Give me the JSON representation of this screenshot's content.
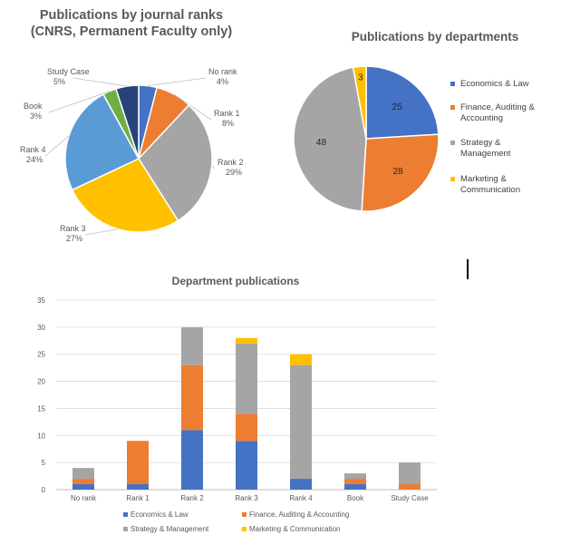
{
  "colors": {
    "blue": "#4472C4",
    "orange": "#ED7D31",
    "gray": "#A5A5A5",
    "yellow": "#FFC000",
    "green": "#70AD47",
    "navy": "#264478",
    "lightblue": "#5B9BD5"
  },
  "chart_data": [
    {
      "type": "pie",
      "title_line1": "Publications by journal ranks",
      "title_line2": "(CNRS, Permanent Faculty only)",
      "slices": [
        {
          "name": "No rank",
          "value": 4,
          "pct_label": "4%",
          "color": "#4472C4"
        },
        {
          "name": "Rank 1",
          "value": 8,
          "pct_label": "8%",
          "color": "#ED7D31"
        },
        {
          "name": "Rank 2",
          "value": 29,
          "pct_label": "29%",
          "color": "#A5A5A5"
        },
        {
          "name": "Rank 3",
          "value": 27,
          "pct_label": "27%",
          "color": "#FFC000"
        },
        {
          "name": "Rank 4",
          "value": 24,
          "pct_label": "24%",
          "color": "#5B9BD5"
        },
        {
          "name": "Book",
          "value": 3,
          "pct_label": "3%",
          "color": "#70AD47"
        },
        {
          "name": "Study Case",
          "value": 5,
          "pct_label": "5%",
          "color": "#264478"
        }
      ]
    },
    {
      "type": "pie",
      "title": "Publications by departments",
      "legend_position": "right",
      "slices": [
        {
          "name": "Economics & Law",
          "value": 25,
          "color": "#4472C4"
        },
        {
          "name": "Finance, Auditing & Accounting",
          "value": 28,
          "color": "#ED7D31"
        },
        {
          "name": "Strategy & Management",
          "value": 48,
          "color": "#A5A5A5"
        },
        {
          "name": "Marketing & Communication",
          "value": 3,
          "color": "#FFC000"
        }
      ],
      "legend_lines": [
        [
          "Economics & Law"
        ],
        [
          "Finance, Auditing &",
          "Accounting"
        ],
        [
          "Strategy &",
          "Management"
        ],
        [
          "Marketing &",
          "Communication"
        ]
      ]
    },
    {
      "type": "bar",
      "stacked": true,
      "title": "Department publications",
      "categories": [
        "No rank",
        "Rank 1",
        "Rank 2",
        "Rank 3",
        "Rank 4",
        "Book",
        "Study Case"
      ],
      "ylim": [
        0,
        35
      ],
      "yticks": [
        0,
        5,
        10,
        15,
        20,
        25,
        30,
        35
      ],
      "grid": true,
      "legend_position": "bottom",
      "series": [
        {
          "name": "Economics & Law",
          "values": [
            1,
            1,
            11,
            9,
            2,
            1,
            0
          ],
          "color": "#4472C4"
        },
        {
          "name": "Finance, Auditing & Accounting",
          "values": [
            1,
            8,
            12,
            5,
            0,
            1,
            1
          ],
          "color": "#ED7D31"
        },
        {
          "name": "Strategy & Management",
          "values": [
            2,
            0,
            7,
            13,
            21,
            1,
            4
          ],
          "color": "#A5A5A5"
        },
        {
          "name": "Marketing & Communication",
          "values": [
            0,
            0,
            0,
            1,
            2,
            0,
            0
          ],
          "color": "#FFC000"
        }
      ]
    }
  ]
}
